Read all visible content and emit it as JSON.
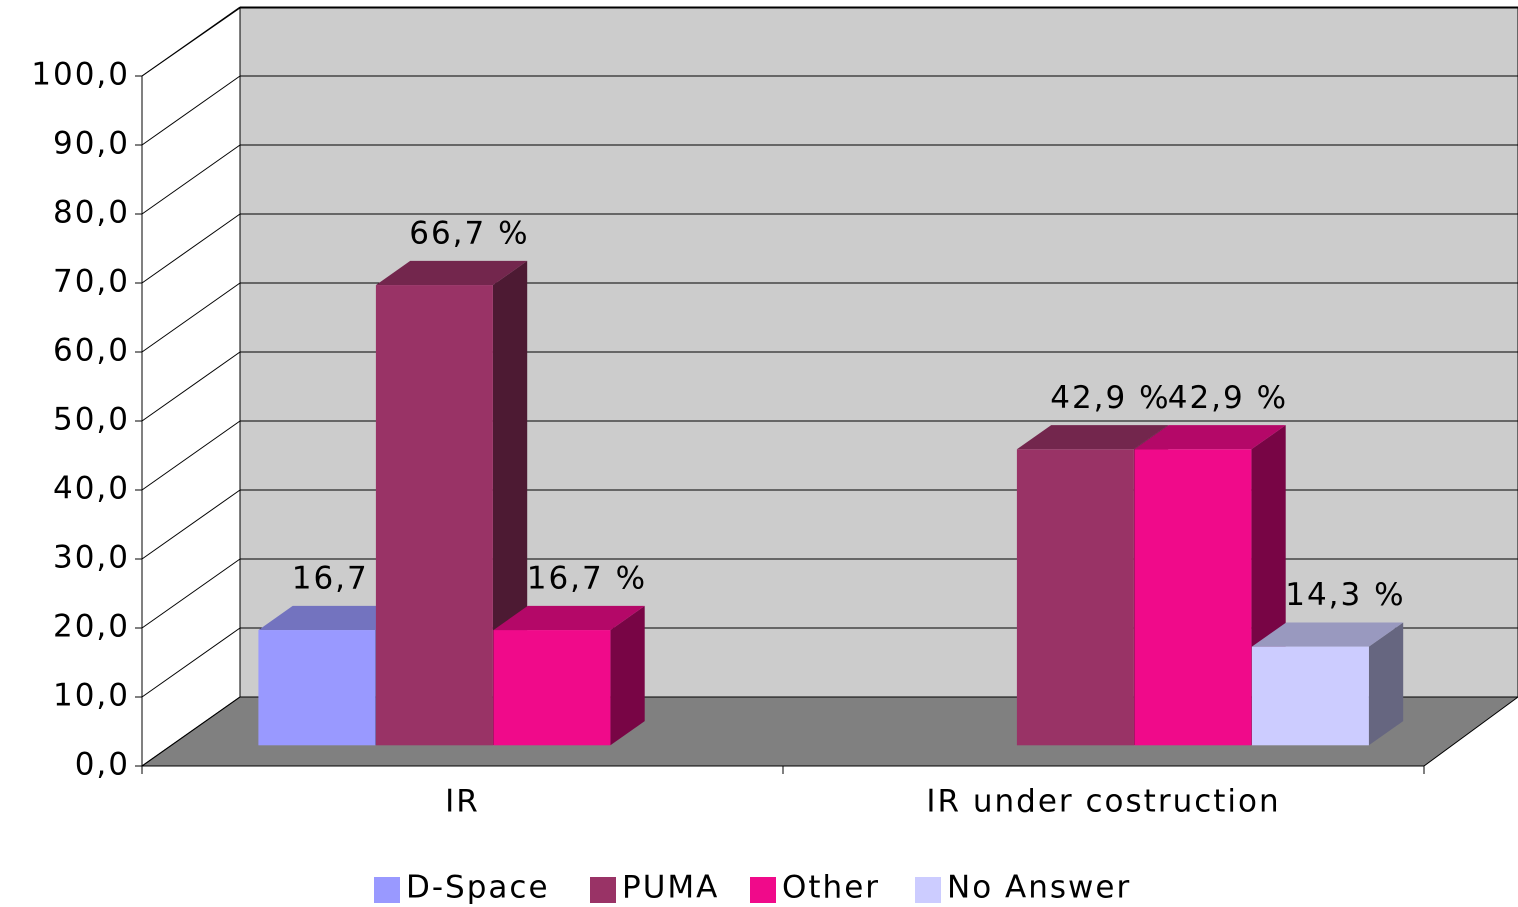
{
  "chart_data": {
    "type": "bar3d",
    "categories": [
      "IR",
      "IR under costruction"
    ],
    "series": [
      {
        "name": "D-Space",
        "color": "#9999ff",
        "values": [
          16.7,
          null
        ],
        "value_labels": [
          "16,7 %",
          null
        ]
      },
      {
        "name": "PUMA",
        "color": "#993366",
        "values": [
          66.7,
          42.9
        ],
        "value_labels": [
          "66,7 %",
          "42,9 %"
        ]
      },
      {
        "name": "Other",
        "color": "#f00a8a",
        "values": [
          16.7,
          42.9
        ],
        "value_labels": [
          "16,7 %",
          "42,9 %"
        ]
      },
      {
        "name": "No Answer",
        "color": "#ccccff",
        "values": [
          null,
          14.3
        ],
        "value_labels": [
          null,
          "14,3 %"
        ]
      }
    ],
    "ylim": [
      0,
      100
    ],
    "yticks": [
      {
        "value": 0,
        "label": "0,0"
      },
      {
        "value": 10,
        "label": "10,0"
      },
      {
        "value": 20,
        "label": "20,0"
      },
      {
        "value": 30,
        "label": "30,0"
      },
      {
        "value": 40,
        "label": "40,0"
      },
      {
        "value": 50,
        "label": "50,0"
      },
      {
        "value": 60,
        "label": "60,0"
      },
      {
        "value": 70,
        "label": "70,0"
      },
      {
        "value": 80,
        "label": "80,0"
      },
      {
        "value": 90,
        "label": "90,0"
      },
      {
        "value": 100,
        "label": "100,0"
      }
    ],
    "grid": true,
    "legend": "bottom"
  }
}
